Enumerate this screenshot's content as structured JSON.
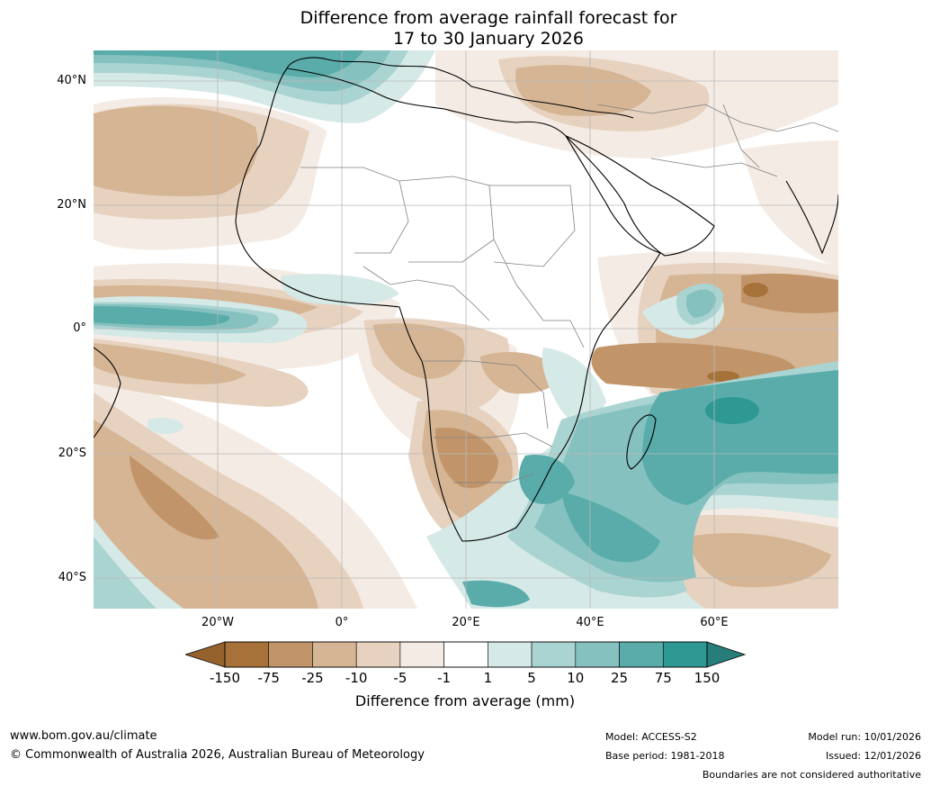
{
  "title": {
    "line1": "Difference from average rainfall forecast for",
    "line2": "17 to 30 January 2026"
  },
  "axes": {
    "lat_labels": [
      "40°N",
      "20°N",
      "0°",
      "20°S",
      "40°S"
    ],
    "lon_labels": [
      "20°W",
      "0°",
      "20°E",
      "40°E",
      "60°E"
    ]
  },
  "legend": {
    "ticks": [
      "-150",
      "-75",
      "-25",
      "-10",
      "-5",
      "-1",
      "1",
      "5",
      "10",
      "25",
      "75",
      "150"
    ],
    "colors": [
      "#a7713a",
      "#c19569",
      "#d5b594",
      "#e6d2bf",
      "#f4ebe4",
      "#ffffff",
      "#d5e9e7",
      "#aad4d2",
      "#84c1bf",
      "#59acaa",
      "#2e9893"
    ],
    "low_extend_color": "#95622e",
    "high_extend_color": "#267d79",
    "title": "Difference from average (mm)"
  },
  "footer": {
    "website": "www.bom.gov.au/climate",
    "copyright": "© Commonwealth of Australia 2026, Australian Bureau of Meteorology",
    "model": "Model: ACCESS-S2",
    "base_period": "Base period: 1981-2018",
    "model_run": "Model run: 10/01/2026",
    "issued": "Issued: 12/01/2026",
    "disclaimer": "Boundaries are not considered authoritative"
  }
}
